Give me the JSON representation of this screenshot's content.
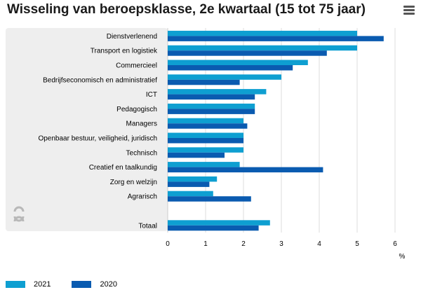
{
  "title": "Wisseling van beroepsklasse, 2e kwartaal (15 tot 75 jaar)",
  "chart_data": {
    "type": "bar",
    "orientation": "horizontal",
    "categories": [
      "Dienstverlenend",
      "Transport en logistiek",
      "Commercieel",
      "Bedrijfseconomisch en administratief",
      "ICT",
      "Pedagogisch",
      "Managers",
      "Openbaar bestuur, veiligheid, juridisch",
      "Technisch",
      "Creatief en taalkundig",
      "Zorg en welzijn",
      "Agrarisch",
      "",
      "Totaal"
    ],
    "series": [
      {
        "name": "2021",
        "color": "#0e9fd1",
        "values": [
          5.0,
          5.0,
          3.7,
          3.0,
          2.6,
          2.3,
          2.0,
          2.0,
          2.0,
          1.9,
          1.3,
          1.2,
          null,
          2.7
        ]
      },
      {
        "name": "2020",
        "color": "#0a5bb0",
        "values": [
          5.7,
          4.2,
          3.3,
          1.9,
          2.3,
          2.3,
          2.1,
          2.0,
          1.5,
          4.1,
          1.1,
          2.2,
          null,
          2.4
        ]
      }
    ],
    "xlim": [
      0,
      6
    ],
    "xticks": [
      0,
      1,
      2,
      3,
      4,
      5,
      6
    ],
    "xlabel": "%",
    "grid": true,
    "legend": "bottom-left"
  }
}
